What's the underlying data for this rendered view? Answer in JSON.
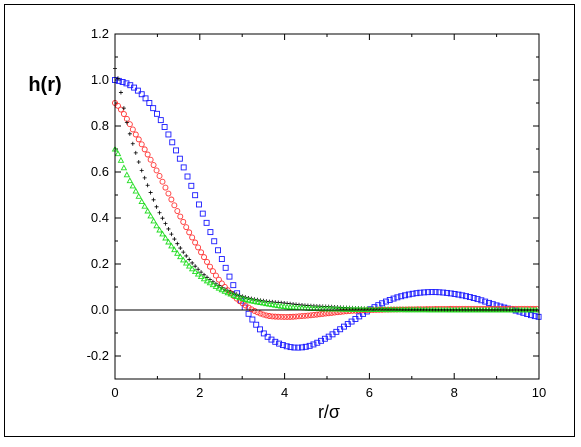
{
  "chart_data": {
    "type": "scatter",
    "title": "",
    "xlabel": "r/σ",
    "ylabel": "h(r)",
    "xlim": [
      0,
      10
    ],
    "ylim": [
      -0.3,
      1.2
    ],
    "xticks": [
      0,
      2,
      4,
      6,
      8,
      10
    ],
    "yticks": [
      -0.2,
      0.0,
      0.2,
      0.4,
      0.6,
      0.8,
      1.0,
      1.2
    ],
    "xtick_labels": [
      "0",
      "2",
      "4",
      "6",
      "8",
      "10"
    ],
    "ytick_labels": [
      "-0.2",
      "0.0",
      "0.2",
      "0.4",
      "0.6",
      "0.8",
      "1.0",
      "1.2"
    ],
    "grid": false,
    "zero_line": true,
    "series": [
      {
        "marker": "square",
        "color": "#1a1aff",
        "x": [
          0.0,
          0.5,
          1.0,
          1.5,
          2.0,
          2.5,
          3.0,
          3.5,
          4.0,
          4.5,
          5.0,
          5.5,
          6.0,
          6.5,
          7.0,
          7.5,
          8.0,
          8.5,
          9.0,
          9.5,
          10.0
        ],
        "y": [
          1.0,
          0.96,
          0.85,
          0.67,
          0.45,
          0.23,
          0.03,
          -0.1,
          -0.155,
          -0.16,
          -0.12,
          -0.06,
          0.0,
          0.045,
          0.07,
          0.078,
          0.07,
          0.05,
          0.02,
          -0.005,
          -0.03
        ]
      },
      {
        "marker": "circle",
        "color": "#ff3333",
        "x": [
          0.0,
          0.5,
          1.0,
          1.5,
          2.0,
          2.5,
          3.0,
          3.5,
          4.0,
          4.5,
          5.0,
          5.5,
          6.0,
          7.0,
          8.0,
          9.0,
          10.0
        ],
        "y": [
          0.9,
          0.76,
          0.6,
          0.42,
          0.26,
          0.12,
          0.03,
          -0.02,
          -0.03,
          -0.025,
          -0.015,
          -0.005,
          0.0,
          0.003,
          0.005,
          0.005,
          0.005
        ]
      },
      {
        "marker": "plus",
        "color": "#000000",
        "x": [
          0.0,
          0.3,
          0.6,
          1.0,
          1.5,
          2.0,
          2.5,
          3.0,
          3.5,
          4.0,
          4.5,
          5.0,
          5.5,
          6.0,
          7.0,
          8.0,
          10.0
        ],
        "y": [
          1.05,
          0.8,
          0.62,
          0.44,
          0.28,
          0.17,
          0.1,
          0.06,
          0.04,
          0.03,
          0.02,
          0.015,
          0.01,
          0.007,
          0.004,
          0.002,
          0.0
        ]
      },
      {
        "marker": "triangle",
        "color": "#22dd22",
        "x": [
          0.0,
          0.3,
          0.6,
          1.0,
          1.5,
          2.0,
          2.5,
          3.0,
          3.5,
          4.0,
          4.5,
          5.0,
          5.5,
          6.0,
          7.0,
          8.0,
          10.0
        ],
        "y": [
          0.7,
          0.58,
          0.48,
          0.36,
          0.24,
          0.15,
          0.09,
          0.05,
          0.03,
          0.015,
          0.008,
          0.005,
          0.003,
          0.002,
          0.001,
          0.0,
          0.0
        ]
      }
    ]
  }
}
